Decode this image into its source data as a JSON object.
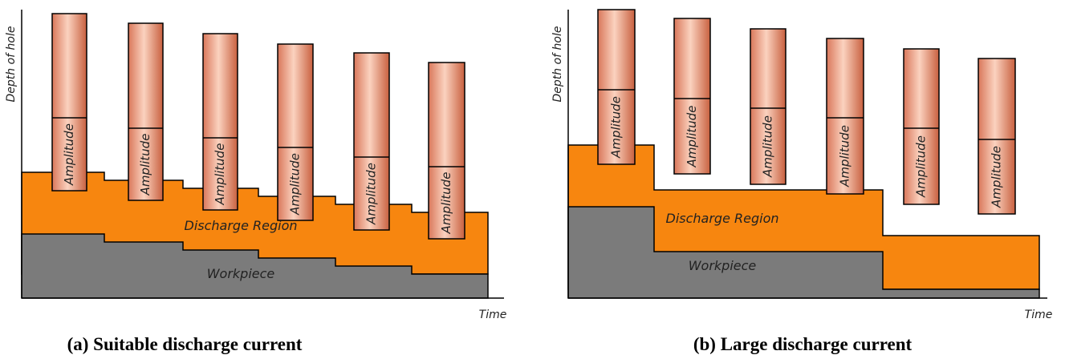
{
  "panels": [
    {
      "y_axis_label": "Depth of hole",
      "x_axis_label": "Time",
      "region_label": "Discharge Region",
      "workpiece_label": "Workpiece",
      "amplitude_labels": [
        "Amplitude",
        "Amplitude",
        "Amplitude",
        "Amplitude",
        "Amplitude",
        "Amplitude"
      ],
      "caption": "(a) Suitable discharge current"
    },
    {
      "y_axis_label": "Depth of hole",
      "x_axis_label": "Time",
      "region_label": "Discharge Region",
      "workpiece_label": "Workpiece",
      "amplitude_labels": [
        "Amplitude",
        "Amplitude",
        "Amplitude",
        "Amplitude",
        "Amplitude",
        "Amplitude"
      ],
      "caption": "(b) Large discharge current"
    }
  ]
}
